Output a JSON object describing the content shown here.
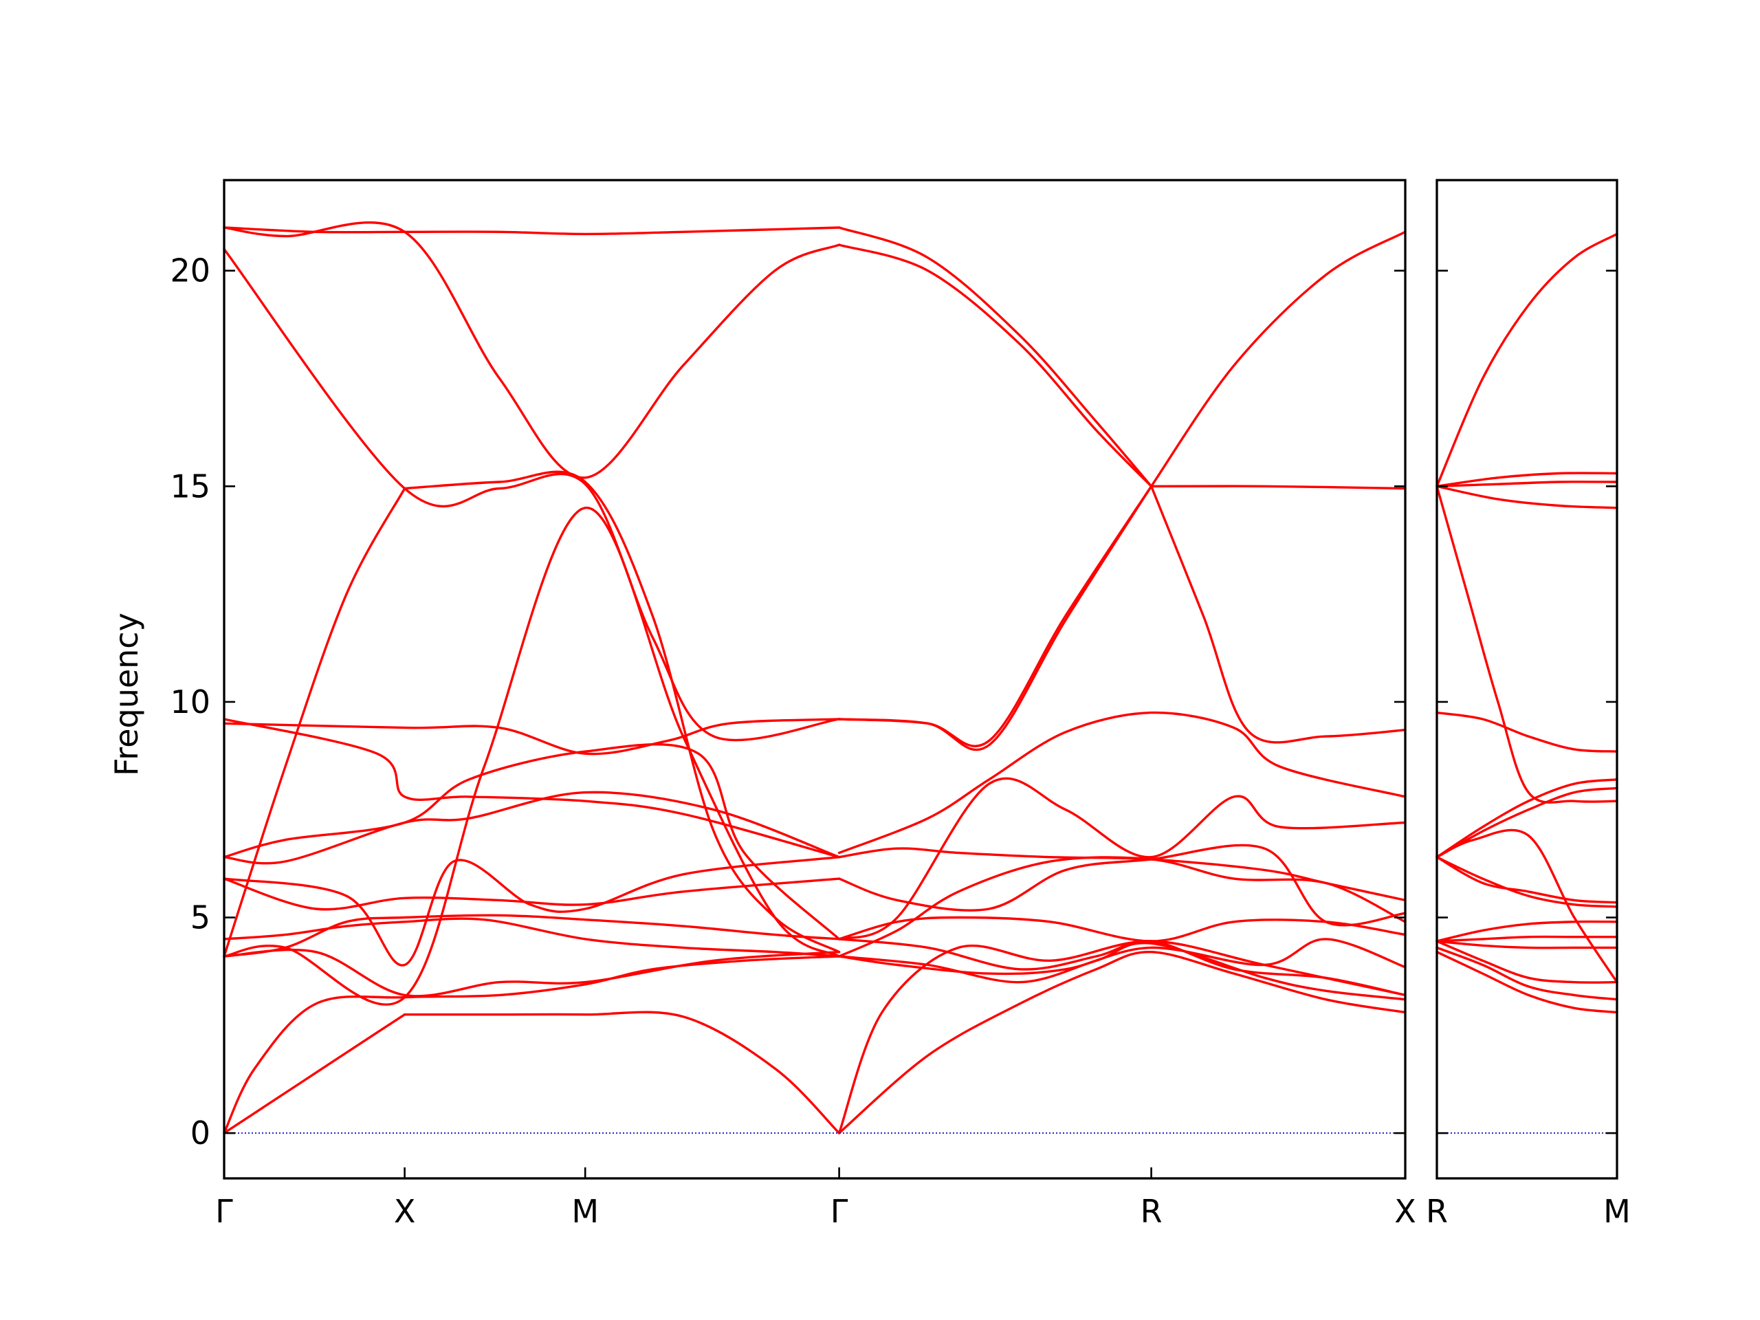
{
  "chart_data": {
    "type": "line",
    "title": "",
    "ylabel": "Frequency",
    "xlabel": "",
    "ylim": [
      -1.05,
      22.1
    ],
    "yticks": [
      "0",
      "5",
      "10",
      "15",
      "20"
    ],
    "ytick_values": [
      0,
      5,
      10,
      15,
      20
    ],
    "legend": "none",
    "grid": false,
    "colors": {
      "bands": "#ff0000",
      "zero_line": "#1f1fbf",
      "axes": "#000000"
    },
    "panels": [
      {
        "name": "Γ-X-M-Γ-R-X",
        "x_range": [
          0,
          3.86
        ],
        "high_symmetry_points": [
          {
            "label": "Γ",
            "x": 0.0
          },
          {
            "label": "X",
            "x": 0.59
          },
          {
            "label": "M",
            "x": 1.18
          },
          {
            "label": "Γ",
            "x": 2.01
          },
          {
            "label": "R",
            "x": 3.03
          },
          {
            "label": "X",
            "x": 3.86
          }
        ],
        "bands": [
          {
            "x": [
              0,
              0.15,
              0.3,
              0.45,
              0.59
            ],
            "y": [
              0,
              0.7,
              1.4,
              2.1,
              2.75
            ]
          },
          {
            "x": [
              0.59,
              0.9,
              1.18,
              1.5,
              1.8,
              2.01
            ],
            "y": [
              2.75,
              2.75,
              2.75,
              2.7,
              1.5,
              0
            ]
          },
          {
            "x": [
              0,
              0.1,
              0.3,
              0.59,
              0.9,
              1.18,
              1.4,
              1.7,
              2.01
            ],
            "y": [
              0,
              1.5,
              3.0,
              3.15,
              3.2,
              3.45,
              3.8,
              4.0,
              4.1
            ]
          },
          {
            "x": [
              2.01,
              2.3,
              2.6,
              2.85,
              3.03,
              3.3,
              3.6,
              3.86
            ],
            "y": [
              0,
              1.8,
              3.0,
              3.8,
              4.2,
              3.7,
              3.1,
              2.8
            ]
          },
          {
            "x": [
              2.01,
              2.15,
              2.4,
              2.7,
              3.03,
              3.4,
              3.86
            ],
            "y": [
              0,
              2.8,
              4.3,
              4.0,
              4.45,
              3.9,
              3.2
            ]
          },
          {
            "x": [
              0,
              0.2,
              0.4,
              0.59,
              0.9,
              1.18,
              1.5,
              1.8,
              2.01
            ],
            "y": [
              4.1,
              4.3,
              4.9,
              5.0,
              5.05,
              4.95,
              4.8,
              4.6,
              4.5
            ]
          },
          {
            "x": [
              0,
              0.2,
              0.4,
              0.59,
              0.85,
              1.18,
              1.5,
              1.8,
              2.01
            ],
            "y": [
              4.5,
              4.6,
              4.8,
              4.9,
              4.95,
              4.5,
              4.3,
              4.2,
              4.1
            ]
          },
          {
            "x": [
              0,
              0.3,
              0.59,
              0.9,
              1.18,
              1.6,
              2.01
            ],
            "y": [
              4.1,
              4.2,
              3.2,
              3.5,
              3.5,
              4.0,
              4.2
            ]
          },
          {
            "x": [
              0,
              0.3,
              0.59,
              0.9,
              1.18,
              1.5,
              2.01
            ],
            "y": [
              5.9,
              5.2,
              5.45,
              5.4,
              5.3,
              5.6,
              5.9
            ]
          },
          {
            "x": [
              0,
              0.4,
              0.59,
              0.75,
              1.0,
              1.18,
              1.5,
              2.01
            ],
            "y": [
              5.9,
              5.5,
              3.9,
              6.3,
              5.3,
              5.2,
              6.0,
              6.4
            ]
          },
          {
            "x": [
              0,
              0.2,
              0.59,
              0.8,
              1.18,
              1.6,
              2.01
            ],
            "y": [
              6.4,
              6.3,
              7.2,
              7.3,
              7.9,
              7.5,
              6.4
            ]
          },
          {
            "x": [
              0,
              0.5,
              0.59,
              0.8,
              1.18,
              1.5,
              2.01
            ],
            "y": [
              9.6,
              8.8,
              7.8,
              7.8,
              7.7,
              7.4,
              6.4
            ]
          },
          {
            "x": [
              0,
              0.6,
              0.9,
              1.18,
              1.45,
              1.65,
              2.01
            ],
            "y": [
              9.5,
              9.4,
              9.4,
              8.8,
              9.1,
              9.5,
              9.6
            ]
          },
          {
            "x": [
              0,
              0.2,
              0.59,
              0.8,
              1.18,
              1.55,
              1.7,
              2.01
            ],
            "y": [
              6.4,
              6.8,
              7.2,
              8.2,
              8.85,
              8.8,
              6.5,
              4.5
            ]
          },
          {
            "x": [
              0,
              0.59,
              0.9,
              1.18,
              1.4,
              1.6,
              2.01
            ],
            "y": [
              20.5,
              14.95,
              14.95,
              15.05,
              11.5,
              9.2,
              9.6
            ]
          },
          {
            "x": [
              0.59,
              0.9,
              1.18,
              1.4,
              1.6,
              1.8,
              2.01
            ],
            "y": [
              14.95,
              15.1,
              15.1,
              12.0,
              7.0,
              5.0,
              4.2
            ]
          },
          {
            "x": [
              0,
              0.3,
              0.59,
              0.9,
              1.18,
              1.5,
              2.01
            ],
            "y": [
              21.0,
              20.9,
              20.9,
              20.9,
              20.85,
              20.9,
              21.0
            ]
          },
          {
            "x": [
              0,
              0.2,
              0.59,
              0.9,
              1.18,
              1.5,
              1.8,
              2.01
            ],
            "y": [
              21.0,
              20.8,
              20.9,
              17.5,
              15.2,
              17.8,
              20.0,
              20.6
            ]
          },
          {
            "x": [
              0,
              0.2,
              0.4,
              0.59
            ],
            "y": [
              4.1,
              8.5,
              12.5,
              14.95
            ]
          },
          {
            "x": [
              0,
              0.2,
              0.59,
              0.85,
              1.18,
              1.5,
              1.8,
              2.01
            ],
            "y": [
              4.1,
              4.3,
              3.15,
              8.5,
              14.5,
              9.2,
              5.0,
              4.1
            ]
          },
          {
            "x": [
              2.01,
              2.3,
              2.6,
              2.85,
              3.03
            ],
            "y": [
              21.0,
              20.3,
              18.5,
              16.5,
              15.0
            ]
          },
          {
            "x": [
              2.01,
              2.3,
              2.6,
              2.85,
              3.03
            ],
            "y": [
              20.6,
              20.0,
              18.3,
              16.3,
              15.0
            ]
          },
          {
            "x": [
              3.03,
              3.3,
              3.6,
              3.86
            ],
            "y": [
              15.0,
              17.8,
              19.9,
              20.9
            ]
          },
          {
            "x": [
              3.03,
              3.2,
              3.35,
              3.6,
              3.86
            ],
            "y": [
              15.0,
              12.0,
              9.3,
              9.2,
              9.35
            ]
          },
          {
            "x": [
              3.03,
              3.4,
              3.86
            ],
            "y": [
              15.0,
              15.0,
              14.95
            ]
          },
          {
            "x": [
              2.01,
              2.3,
              2.5,
              2.75,
              3.03
            ],
            "y": [
              9.6,
              9.5,
              9.1,
              12.0,
              15.0
            ]
          },
          {
            "x": [
              2.01,
              2.3,
              2.5,
              2.75,
              3.03
            ],
            "y": [
              9.6,
              9.5,
              9.0,
              11.9,
              15.0
            ]
          },
          {
            "x": [
              2.01,
              2.3,
              2.5,
              2.75,
              3.03,
              3.3,
              3.45,
              3.86
            ],
            "y": [
              6.5,
              7.3,
              8.2,
              9.3,
              9.75,
              9.4,
              8.5,
              7.8
            ]
          },
          {
            "x": [
              2.01,
              2.2,
              2.5,
              2.75,
              3.03,
              3.3,
              3.45,
              3.86
            ],
            "y": [
              4.5,
              5.0,
              8.1,
              7.5,
              6.4,
              7.8,
              7.1,
              7.2
            ]
          },
          {
            "x": [
              2.01,
              2.2,
              2.5,
              2.75,
              3.03,
              3.4,
              3.6,
              3.86
            ],
            "y": [
              5.9,
              5.4,
              5.2,
              6.1,
              6.35,
              6.6,
              4.9,
              5.1
            ]
          },
          {
            "x": [
              2.01,
              2.2,
              2.4,
              2.7,
              3.03,
              3.4,
              3.6,
              3.86
            ],
            "y": [
              6.4,
              6.6,
              6.5,
              6.4,
              6.35,
              6.1,
              5.8,
              5.4
            ]
          },
          {
            "x": [
              2.01,
              2.2,
              2.4,
              2.7,
              3.03,
              3.3,
              3.6,
              3.86
            ],
            "y": [
              4.5,
              4.9,
              5.0,
              4.9,
              4.45,
              4.9,
              4.9,
              4.6
            ]
          },
          {
            "x": [
              2.01,
              2.2,
              2.4,
              2.7,
              3.03,
              3.3,
              3.6,
              3.86
            ],
            "y": [
              4.1,
              4.7,
              5.6,
              6.3,
              6.35,
              5.9,
              5.8,
              4.9
            ]
          },
          {
            "x": [
              2.01,
              2.2,
              2.5,
              2.75,
              3.03,
              3.4,
              3.6,
              3.86
            ],
            "y": [
              4.1,
              3.9,
              3.7,
              3.8,
              4.3,
              3.9,
              4.5,
              3.85
            ]
          },
          {
            "x": [
              2.01,
              2.3,
              2.6,
              2.85,
              3.03,
              3.4,
              3.6,
              3.86
            ],
            "y": [
              4.1,
              3.9,
              3.5,
              4.0,
              4.4,
              3.6,
              3.3,
              3.1
            ]
          },
          {
            "x": [
              2.01,
              2.3,
              2.6,
              2.85,
              3.03,
              3.3,
              3.6,
              3.86
            ],
            "y": [
              4.5,
              4.3,
              3.8,
              4.1,
              4.45,
              3.8,
              3.6,
              3.2
            ]
          }
        ]
      },
      {
        "name": "R-M",
        "x_range": [
          0,
          0.59
        ],
        "high_symmetry_points": [
          {
            "label": "R",
            "x": 0.0
          },
          {
            "label": "M",
            "x": 0.59
          }
        ],
        "bands": [
          {
            "x": [
              0,
              0.15,
              0.3,
              0.45,
              0.59
            ],
            "y": [
              15.0,
              17.5,
              19.2,
              20.3,
              20.85
            ]
          },
          {
            "x": [
              0,
              0.2,
              0.4,
              0.59
            ],
            "y": [
              15.0,
              15.2,
              15.3,
              15.3
            ]
          },
          {
            "x": [
              0,
              0.2,
              0.4,
              0.59
            ],
            "y": [
              15.0,
              15.05,
              15.1,
              15.1
            ]
          },
          {
            "x": [
              0,
              0.2,
              0.4,
              0.59
            ],
            "y": [
              15.0,
              14.7,
              14.55,
              14.5
            ]
          },
          {
            "x": [
              0,
              0.1,
              0.2,
              0.3,
              0.45,
              0.59
            ],
            "y": [
              15.0,
              12.5,
              10.0,
              7.9,
              7.7,
              7.7
            ]
          },
          {
            "x": [
              0,
              0.15,
              0.3,
              0.45,
              0.59
            ],
            "y": [
              9.75,
              9.6,
              9.2,
              8.9,
              8.85
            ]
          },
          {
            "x": [
              0,
              0.15,
              0.3,
              0.45,
              0.59
            ],
            "y": [
              6.4,
              7.0,
              7.5,
              7.9,
              8.0
            ]
          },
          {
            "x": [
              0,
              0.15,
              0.3,
              0.45,
              0.59
            ],
            "y": [
              6.4,
              7.1,
              7.7,
              8.1,
              8.2
            ]
          },
          {
            "x": [
              0,
              0.12,
              0.3,
              0.45,
              0.59
            ],
            "y": [
              6.4,
              6.8,
              6.9,
              5.0,
              3.5
            ]
          },
          {
            "x": [
              0,
              0.15,
              0.3,
              0.45,
              0.59
            ],
            "y": [
              6.4,
              5.9,
              5.5,
              5.3,
              5.25
            ]
          },
          {
            "x": [
              0,
              0.15,
              0.3,
              0.45,
              0.59
            ],
            "y": [
              6.4,
              5.8,
              5.6,
              5.4,
              5.35
            ]
          },
          {
            "x": [
              0,
              0.15,
              0.3,
              0.45,
              0.59
            ],
            "y": [
              4.45,
              4.7,
              4.85,
              4.9,
              4.9
            ]
          },
          {
            "x": [
              0,
              0.15,
              0.3,
              0.45,
              0.59
            ],
            "y": [
              4.45,
              4.5,
              4.55,
              4.55,
              4.55
            ]
          },
          {
            "x": [
              0,
              0.15,
              0.3,
              0.45,
              0.59
            ],
            "y": [
              4.45,
              4.35,
              4.3,
              4.3,
              4.3
            ]
          },
          {
            "x": [
              0,
              0.15,
              0.3,
              0.45,
              0.59
            ],
            "y": [
              4.45,
              4.0,
              3.6,
              3.5,
              3.5
            ]
          },
          {
            "x": [
              0,
              0.15,
              0.3,
              0.45,
              0.59
            ],
            "y": [
              4.3,
              3.9,
              3.4,
              3.2,
              3.1
            ]
          },
          {
            "x": [
              0,
              0.15,
              0.3,
              0.45,
              0.59
            ],
            "y": [
              4.2,
              3.7,
              3.2,
              2.9,
              2.8
            ]
          }
        ]
      }
    ]
  }
}
